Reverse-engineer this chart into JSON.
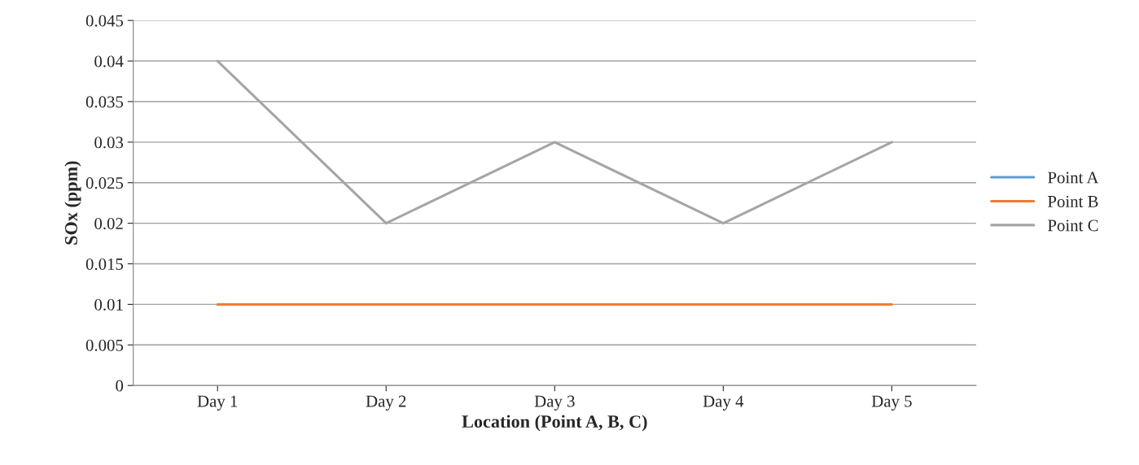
{
  "chart_data": {
    "type": "line",
    "xlabel": "Location (Point A, B, C)",
    "ylabel": "SOx (ppm)",
    "categories": [
      "Day 1",
      "Day 2",
      "Day 3",
      "Day 4",
      "Day 5"
    ],
    "series": [
      {
        "name": "Point A",
        "color": "#5b9bd5",
        "values": [
          null,
          null,
          null,
          null,
          null
        ]
      },
      {
        "name": "Point B",
        "color": "#ed7d31",
        "values": [
          0.01,
          0.01,
          0.01,
          0.01,
          0.01
        ]
      },
      {
        "name": "Point C",
        "color": "#a5a5a5",
        "values": [
          0.04,
          0.02,
          0.03,
          0.02,
          0.03
        ]
      }
    ],
    "ylim": [
      0,
      0.045
    ],
    "yticks": [
      0,
      0.005,
      0.01,
      0.015,
      0.02,
      0.025,
      0.03,
      0.035,
      0.04,
      0.045
    ],
    "grid": "y",
    "legend": "right",
    "marker": "none",
    "line_style": "solid"
  }
}
